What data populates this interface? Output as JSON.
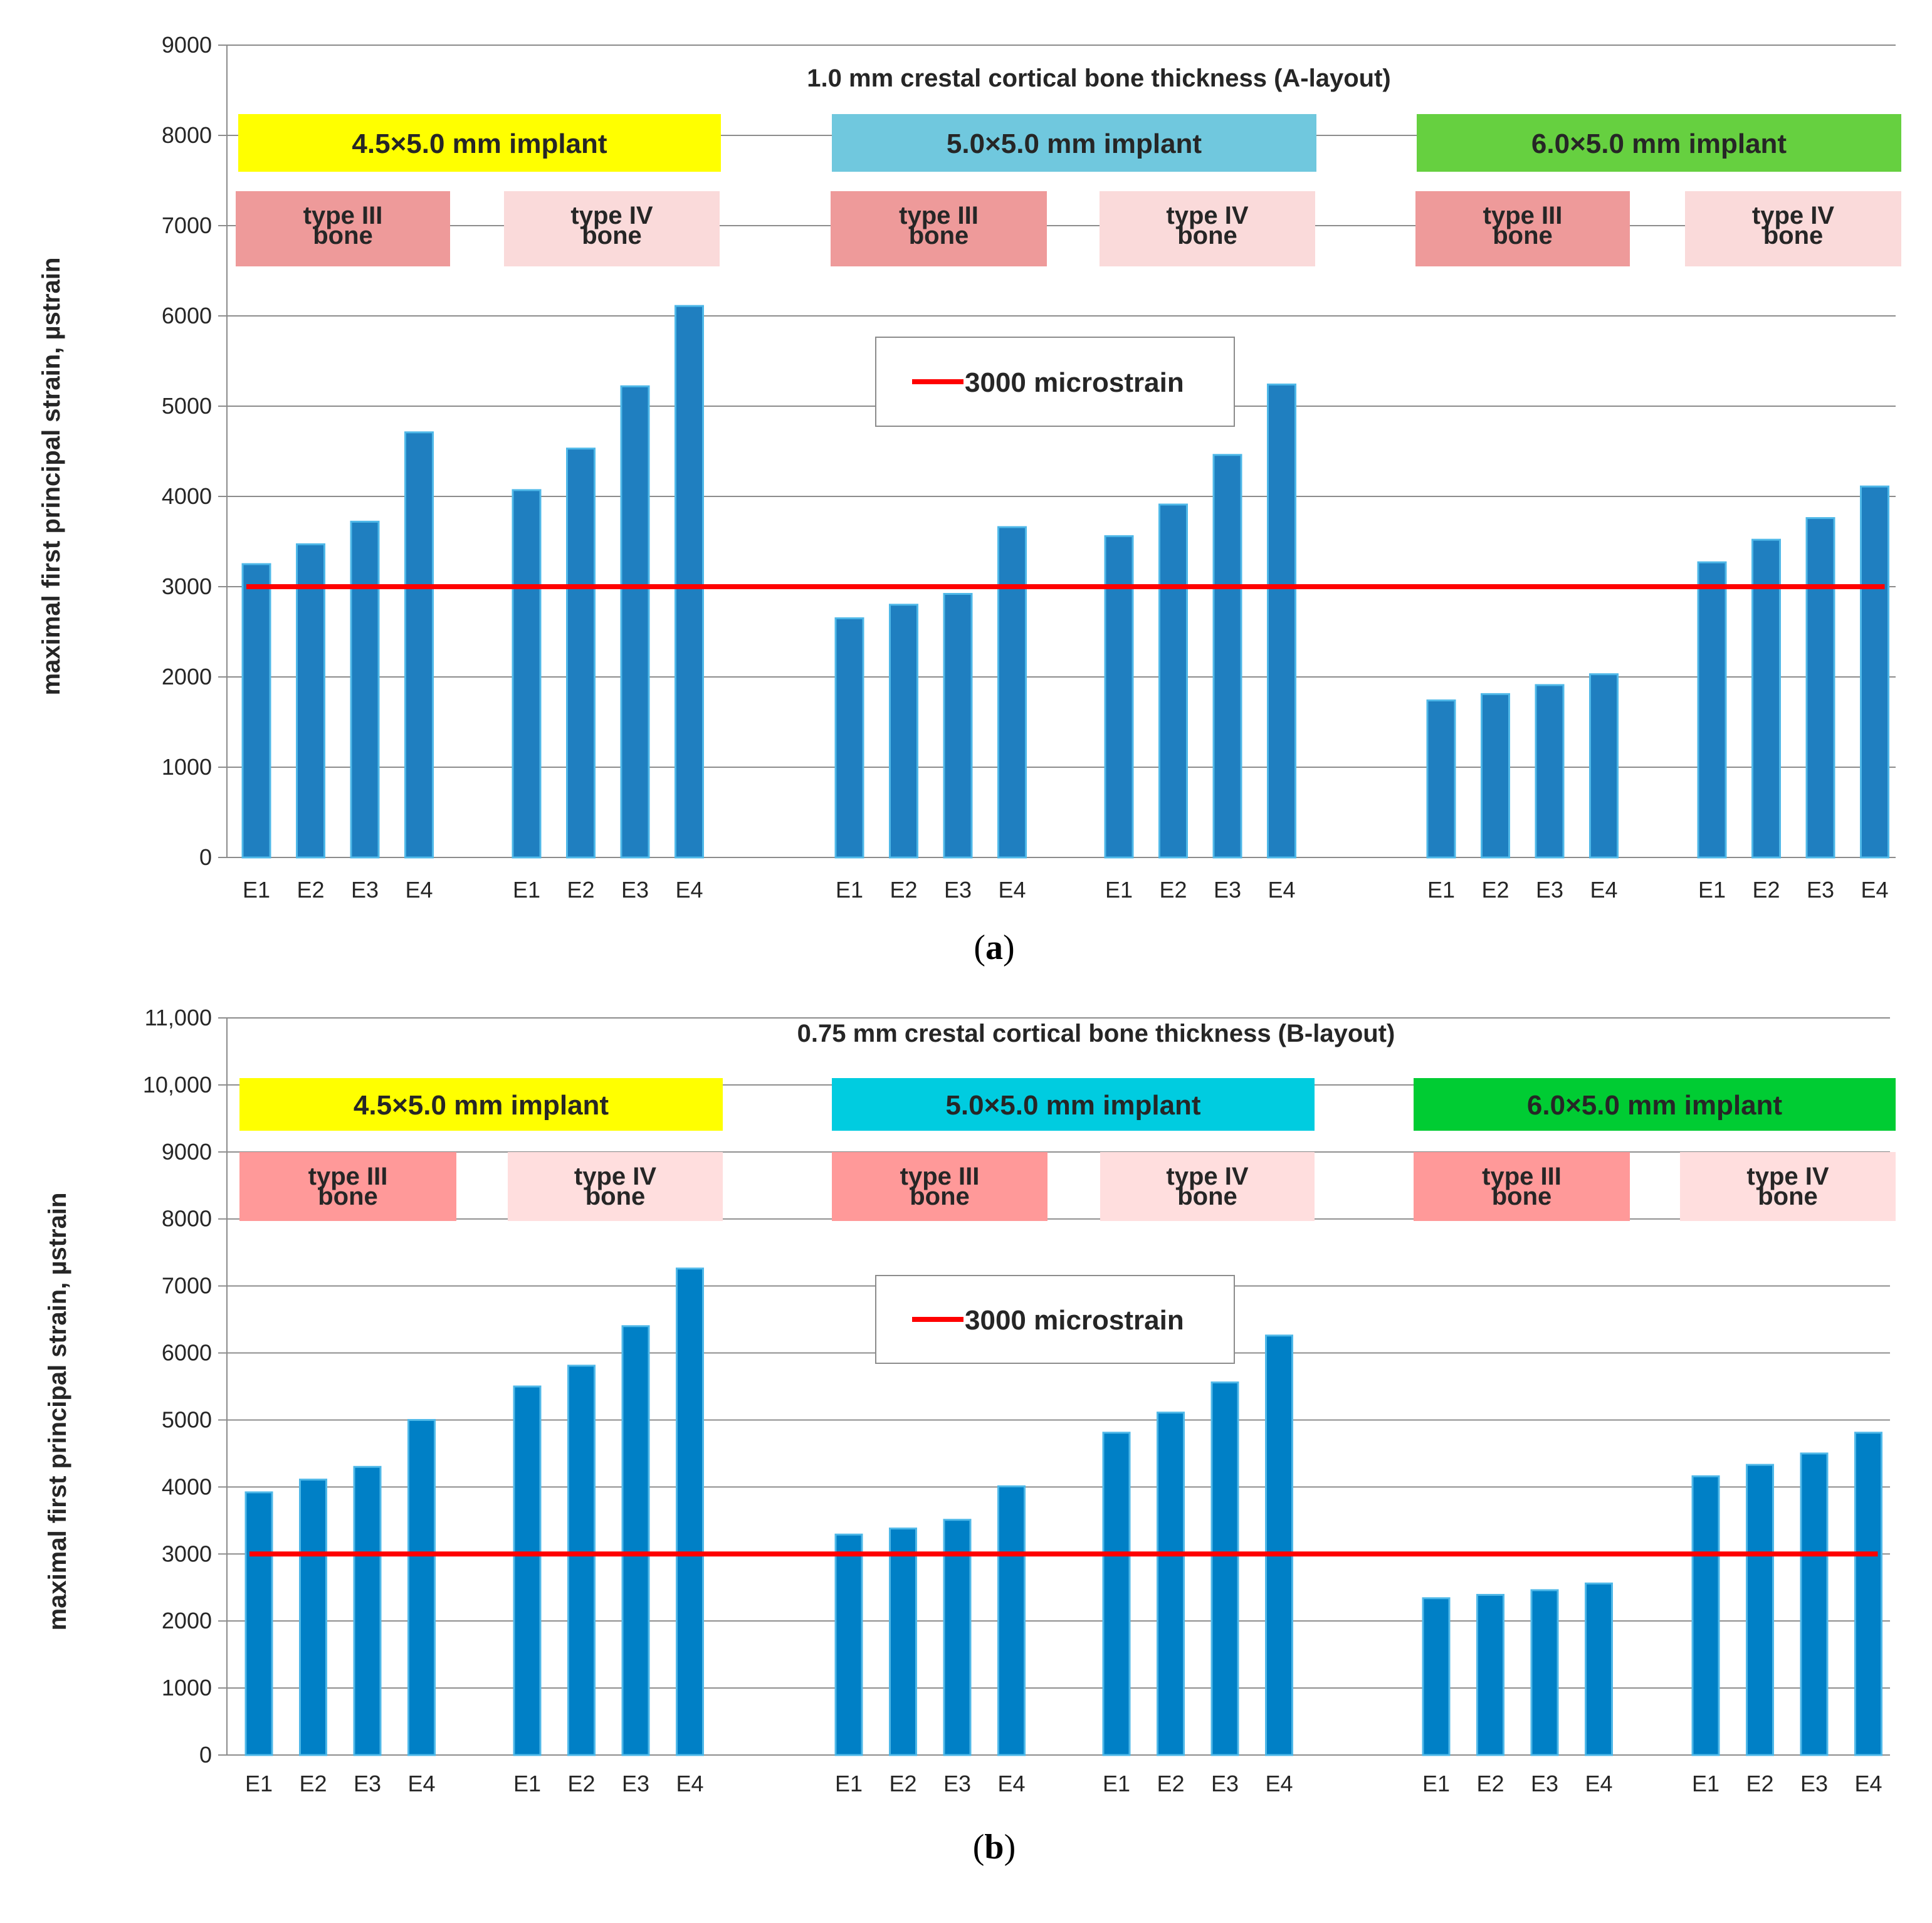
{
  "chart_data": [
    {
      "type": "bar",
      "panel_label": "a",
      "title": "1.0 mm crestal cortical bone thickness (A-layout)",
      "ylabel": "maximal first principal strain, µstrain",
      "xlabel": "",
      "ylim": [
        0,
        9000
      ],
      "yticks": [
        0,
        1000,
        2000,
        3000,
        4000,
        5000,
        6000,
        7000,
        8000,
        9000
      ],
      "ytick_labels": [
        "0",
        "1000",
        "2000",
        "3000",
        "4000",
        "5000",
        "6000",
        "7000",
        "8000",
        "9000"
      ],
      "grid": true,
      "bar_color": "#1F7FC0",
      "threshold": {
        "label": "3000 microstrain",
        "value": 3000,
        "color": "#FF0000"
      },
      "implants": [
        {
          "label": "4.5×5.0 mm implant",
          "color": "#FFFF00"
        },
        {
          "label": "5.0×5.0 mm implant",
          "color": "#70C8DE"
        },
        {
          "label": "6.0×5.0 mm implant",
          "color": "#66D040"
        }
      ],
      "bone_labels": {
        "type3_line1": "type III",
        "type3_line2": "bone",
        "type4_line1": "type IV",
        "type4_line2": "bone",
        "type3_color": "#EE9A9A",
        "type4_color": "#FADADA"
      },
      "categories": [
        "E1",
        "E2",
        "E3",
        "E4"
      ],
      "groups": [
        {
          "implant": "4.5×5.0 mm implant",
          "bone": "type III bone",
          "values": [
            3250,
            3470,
            3720,
            4710
          ]
        },
        {
          "implant": "4.5×5.0 mm implant",
          "bone": "type IV bone",
          "values": [
            4070,
            4530,
            5220,
            6110
          ]
        },
        {
          "implant": "5.0×5.0 mm implant",
          "bone": "type III bone",
          "values": [
            2650,
            2800,
            2920,
            3660
          ]
        },
        {
          "implant": "5.0×5.0 mm implant",
          "bone": "type IV bone",
          "values": [
            3560,
            3910,
            4460,
            5240
          ]
        },
        {
          "implant": "6.0×5.0 mm implant",
          "bone": "type III bone",
          "values": [
            1740,
            1810,
            1910,
            2030
          ]
        },
        {
          "implant": "6.0×5.0 mm implant",
          "bone": "type IV bone",
          "values": [
            3270,
            3520,
            3760,
            4110
          ]
        }
      ]
    },
    {
      "type": "bar",
      "panel_label": "b",
      "title": "0.75 mm crestal cortical bone thickness (B-layout)",
      "ylabel": "maximal first principal strain, µstrain",
      "xlabel": "",
      "ylim": [
        0,
        11000
      ],
      "yticks": [
        0,
        1000,
        2000,
        3000,
        4000,
        5000,
        6000,
        7000,
        8000,
        9000,
        10000,
        11000
      ],
      "ytick_labels": [
        "0",
        "1000",
        "2000",
        "3000",
        "4000",
        "5000",
        "6000",
        "7000",
        "8000",
        "9000",
        "10,000",
        "11,000"
      ],
      "grid": true,
      "bar_color": "#0080C6",
      "threshold": {
        "label": "3000 microstrain",
        "value": 3000,
        "color": "#FF0000"
      },
      "implants": [
        {
          "label": "4.5×5.0 mm implant",
          "color": "#FFFF00"
        },
        {
          "label": "5.0×5.0 mm implant",
          "color": "#00CCE0"
        },
        {
          "label": "6.0×5.0 mm implant",
          "color": "#00CC33"
        }
      ],
      "bone_labels": {
        "type3_line1": "type III",
        "type3_line2": "bone",
        "type4_line1": "type IV",
        "type4_line2": "bone",
        "type3_color": "#FF9999",
        "type4_color": "#FFDEDE"
      },
      "categories": [
        "E1",
        "E2",
        "E3",
        "E4"
      ],
      "groups": [
        {
          "implant": "4.5×5.0 mm implant",
          "bone": "type III bone",
          "values": [
            3920,
            4110,
            4300,
            5000
          ]
        },
        {
          "implant": "4.5×5.0 mm implant",
          "bone": "type IV bone",
          "values": [
            5500,
            5810,
            6400,
            7260
          ]
        },
        {
          "implant": "5.0×5.0 mm implant",
          "bone": "type III bone",
          "values": [
            3290,
            3380,
            3510,
            4010
          ]
        },
        {
          "implant": "5.0×5.0 mm implant",
          "bone": "type IV bone",
          "values": [
            4810,
            5110,
            5560,
            6260
          ]
        },
        {
          "implant": "6.0×5.0 mm implant",
          "bone": "type III bone",
          "values": [
            2340,
            2390,
            2460,
            2560
          ]
        },
        {
          "implant": "6.0×5.0 mm implant",
          "bone": "type IV bone",
          "values": [
            4160,
            4330,
            4500,
            4810
          ]
        }
      ]
    }
  ]
}
